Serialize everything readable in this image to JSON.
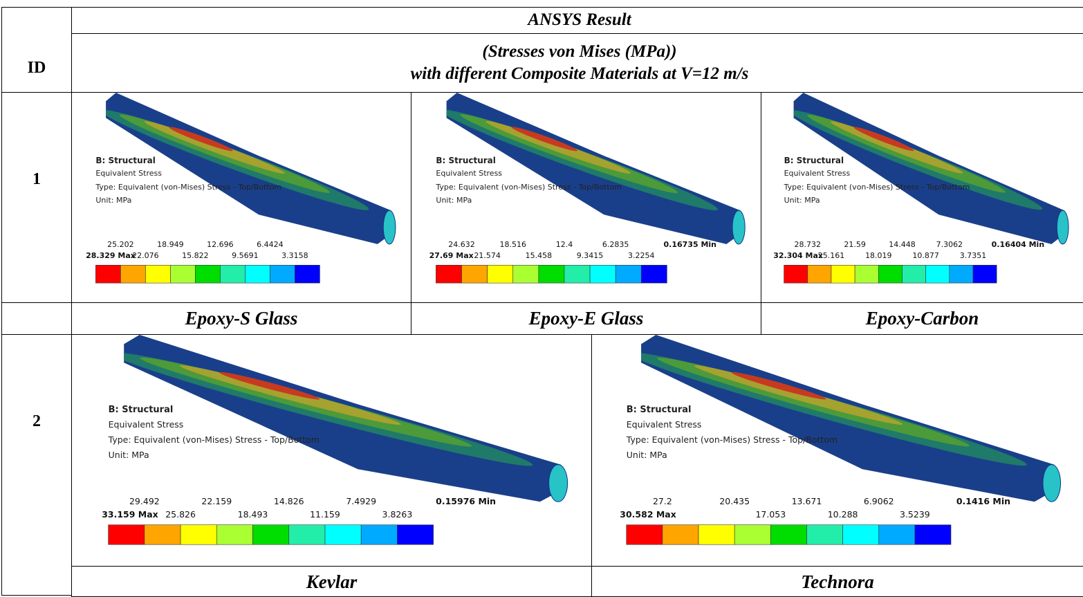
{
  "header": {
    "id": "ID",
    "title": "ANSYS Result",
    "subtitle_lines": [
      "(Stresses von Mises (MPa))",
      "with different Composite Materials at V=12 m/s"
    ]
  },
  "rows": [
    {
      "id": "1",
      "panels": [
        {
          "material": "Epoxy-S Glass",
          "result": {
            "system": "B: Structural",
            "quantity": "Equivalent Stress",
            "type": "Type: Equivalent (von-Mises) Stress - Top/Bottom",
            "unit": "Unit: MPa",
            "top_labels": [
              "25.202",
              "18.949",
              "12.696",
              "6.4424"
            ],
            "bottom_labels": [
              "28.329 Max",
              "22.076",
              "15.822",
              "9.5691",
              "3.3158"
            ]
          }
        },
        {
          "material": "Epoxy-E Glass",
          "result": {
            "system": "B: Structural",
            "quantity": "Equivalent Stress",
            "type": "Type: Equivalent (von-Mises) Stress - Top/Bottom",
            "unit": "Unit: MPa",
            "top_labels": [
              "24.632",
              "18.516",
              "12.4",
              "6.2835",
              "0.16735 Min"
            ],
            "bottom_labels": [
              "27.69 Max",
              "21.574",
              "15.458",
              "9.3415",
              "3.2254"
            ]
          }
        },
        {
          "material": "Epoxy-Carbon",
          "result": {
            "system": "B: Structural",
            "quantity": "Equivalent Stress",
            "type": "Type: Equivalent (von-Mises) Stress - Top/Bottom",
            "unit": "Unit: MPa",
            "top_labels": [
              "28.732",
              "21.59",
              "14.448",
              "7.3062",
              "0.16404 Min"
            ],
            "bottom_labels": [
              "32.304 Max",
              "25.161",
              "18.019",
              "10.877",
              "3.7351"
            ]
          }
        }
      ]
    },
    {
      "id": "2",
      "panels": [
        {
          "material": "Kevlar",
          "result": {
            "system": "B: Structural",
            "quantity": "Equivalent Stress",
            "type": "Type: Equivalent (von-Mises) Stress - Top/Bottom",
            "unit": "Unit: MPa",
            "top_labels": [
              "29.492",
              "22.159",
              "14.826",
              "7.4929",
              "0.15976 Min"
            ],
            "bottom_labels": [
              "33.159 Max",
              "25.826",
              "18.493",
              "11.159",
              "3.8263"
            ]
          }
        },
        {
          "material": "Technora",
          "result": {
            "system": "B: Structural",
            "quantity": "Equivalent Stress",
            "type": "Type: Equivalent (von-Mises) Stress - Top/Bottom",
            "unit": "Unit: MPa",
            "top_labels": [
              "27.2",
              "20.435",
              "13.671",
              "6.9062",
              "0.1416 Min"
            ],
            "bottom_labels": [
              "30.582 Max",
              "17.053",
              "10.288",
              "3.5239"
            ]
          }
        }
      ]
    }
  ]
}
